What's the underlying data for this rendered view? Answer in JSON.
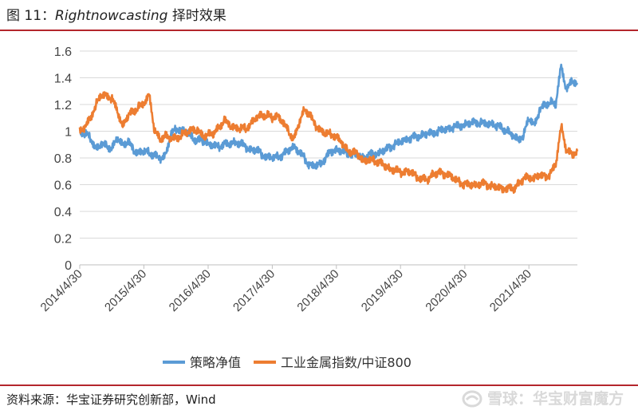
{
  "header": {
    "figure_number": "图 11：",
    "model_name": "Rightnowcasting",
    "suffix": " 择时效果"
  },
  "footer": {
    "source": "资料来源：华宝证券研究创新部，Wind",
    "watermark": "雪球：华宝财富魔方",
    "watermark_icon": "snowball-logo-icon"
  },
  "chart_data": {
    "type": "line",
    "title": "",
    "xlabel": "",
    "ylabel": "",
    "ylim": [
      0,
      1.6
    ],
    "y_ticks": [
      0,
      0.2,
      0.4,
      0.6,
      0.8,
      1,
      1.2,
      1.4,
      1.6
    ],
    "y_tick_labels": [
      "0",
      "0.2",
      "0.4",
      "0.6",
      "0.8",
      "1",
      "1.2",
      "1.4",
      "1.6"
    ],
    "x_tick_labels": [
      "2014/4/30",
      "2015/4/30",
      "2016/4/30",
      "2017/4/30",
      "2018/4/30",
      "2019/4/30",
      "2020/4/30",
      "2021/4/30"
    ],
    "x_range": [
      "2014/4/30",
      "2022/1/31"
    ],
    "grid": true,
    "legend_position": "bottom",
    "series": [
      {
        "name": "策略净值",
        "color": "#5b9bd5",
        "x": [
          "2014/4/30",
          "2014/5/31",
          "2014/6/30",
          "2014/7/31",
          "2014/8/31",
          "2014/9/30",
          "2014/10/31",
          "2014/11/30",
          "2014/12/31",
          "2015/1/31",
          "2015/2/28",
          "2015/3/31",
          "2015/4/30",
          "2015/5/31",
          "2015/6/30",
          "2015/7/31",
          "2015/8/31",
          "2015/9/30",
          "2015/10/31",
          "2015/11/30",
          "2015/12/31",
          "2016/1/31",
          "2016/2/29",
          "2016/3/31",
          "2016/4/30",
          "2016/5/31",
          "2016/6/30",
          "2016/7/31",
          "2016/8/31",
          "2016/9/30",
          "2016/10/31",
          "2016/11/30",
          "2016/12/31",
          "2017/1/31",
          "2017/2/28",
          "2017/3/31",
          "2017/4/30",
          "2017/5/31",
          "2017/6/30",
          "2017/7/31",
          "2017/8/31",
          "2017/9/30",
          "2017/10/31",
          "2017/11/30",
          "2017/12/31",
          "2018/1/31",
          "2018/2/28",
          "2018/3/31",
          "2018/4/30",
          "2018/5/31",
          "2018/6/30",
          "2018/7/31",
          "2018/8/31",
          "2018/9/30",
          "2018/10/31",
          "2018/11/30",
          "2018/12/31",
          "2019/1/31",
          "2019/2/28",
          "2019/3/31",
          "2019/4/30",
          "2019/5/31",
          "2019/6/30",
          "2019/7/31",
          "2019/8/31",
          "2019/9/30",
          "2019/10/31",
          "2019/11/30",
          "2019/12/31",
          "2020/1/31",
          "2020/2/29",
          "2020/3/31",
          "2020/4/30",
          "2020/5/31",
          "2020/6/30",
          "2020/7/31",
          "2020/8/31",
          "2020/9/30",
          "2020/10/31",
          "2020/11/30",
          "2020/12/31",
          "2021/1/31",
          "2021/2/28",
          "2021/3/31",
          "2021/4/30",
          "2021/5/31",
          "2021/6/30",
          "2021/7/31",
          "2021/8/31",
          "2021/9/30",
          "2021/10/31",
          "2021/11/30",
          "2021/12/31",
          "2022/1/31"
        ],
        "y": [
          1.0,
          0.98,
          0.95,
          0.87,
          0.9,
          0.89,
          0.87,
          0.95,
          0.9,
          0.92,
          0.86,
          0.84,
          0.85,
          0.84,
          0.82,
          0.79,
          0.82,
          0.97,
          1.02,
          1.01,
          0.99,
          0.95,
          0.93,
          0.93,
          0.91,
          0.89,
          0.88,
          0.91,
          0.9,
          0.92,
          0.91,
          0.88,
          0.86,
          0.86,
          0.83,
          0.81,
          0.8,
          0.81,
          0.82,
          0.86,
          0.89,
          0.84,
          0.8,
          0.74,
          0.74,
          0.76,
          0.8,
          0.85,
          0.86,
          0.85,
          0.84,
          0.83,
          0.82,
          0.8,
          0.82,
          0.83,
          0.84,
          0.86,
          0.88,
          0.9,
          0.92,
          0.94,
          0.95,
          0.96,
          0.97,
          0.98,
          0.99,
          1.0,
          1.01,
          1.02,
          1.03,
          1.04,
          1.05,
          1.06,
          1.07,
          1.06,
          1.05,
          1.06,
          1.04,
          1.02,
          1.0,
          0.96,
          0.94,
          0.97,
          1.1,
          1.05,
          1.15,
          1.2,
          1.22,
          1.2,
          1.5,
          1.3,
          1.38,
          1.35
        ]
      },
      {
        "name": "工业金属指数/中证800",
        "color": "#ed7d31",
        "x": [
          "2014/4/30",
          "2014/5/31",
          "2014/6/30",
          "2014/7/31",
          "2014/8/31",
          "2014/9/30",
          "2014/10/31",
          "2014/11/30",
          "2014/12/31",
          "2015/1/31",
          "2015/2/28",
          "2015/3/31",
          "2015/4/30",
          "2015/5/31",
          "2015/6/30",
          "2015/7/31",
          "2015/8/31",
          "2015/9/30",
          "2015/10/31",
          "2015/11/30",
          "2015/12/31",
          "2016/1/31",
          "2016/2/29",
          "2016/3/31",
          "2016/4/30",
          "2016/5/31",
          "2016/6/30",
          "2016/7/31",
          "2016/8/31",
          "2016/9/30",
          "2016/10/31",
          "2016/11/30",
          "2016/12/31",
          "2017/1/31",
          "2017/2/28",
          "2017/3/31",
          "2017/4/30",
          "2017/5/31",
          "2017/6/30",
          "2017/7/31",
          "2017/8/31",
          "2017/9/30",
          "2017/10/31",
          "2017/11/30",
          "2017/12/31",
          "2018/1/31",
          "2018/2/28",
          "2018/3/31",
          "2018/4/30",
          "2018/5/31",
          "2018/6/30",
          "2018/7/31",
          "2018/8/31",
          "2018/9/30",
          "2018/10/31",
          "2018/11/30",
          "2018/12/31",
          "2019/1/31",
          "2019/2/28",
          "2019/3/31",
          "2019/4/30",
          "2019/5/31",
          "2019/6/30",
          "2019/7/31",
          "2019/8/31",
          "2019/9/30",
          "2019/10/31",
          "2019/11/30",
          "2019/12/31",
          "2020/1/31",
          "2020/2/29",
          "2020/3/31",
          "2020/4/30",
          "2020/5/31",
          "2020/6/30",
          "2020/7/31",
          "2020/8/31",
          "2020/9/30",
          "2020/10/31",
          "2020/11/30",
          "2020/12/31",
          "2021/1/31",
          "2021/2/28",
          "2021/3/31",
          "2021/4/30",
          "2021/5/31",
          "2021/6/30",
          "2021/7/31",
          "2021/8/31",
          "2021/9/30",
          "2021/10/31",
          "2021/11/30",
          "2021/12/31",
          "2022/1/31"
        ],
        "y": [
          1.0,
          1.03,
          1.1,
          1.2,
          1.27,
          1.27,
          1.24,
          1.15,
          1.04,
          1.12,
          1.15,
          1.18,
          1.2,
          1.28,
          1.0,
          0.94,
          0.97,
          0.94,
          0.95,
          0.97,
          0.99,
          1.02,
          1.0,
          0.96,
          0.98,
          0.98,
          1.03,
          1.08,
          1.04,
          1.03,
          1.02,
          1.02,
          1.06,
          1.1,
          1.12,
          1.12,
          1.1,
          1.12,
          1.06,
          1.0,
          0.94,
          1.06,
          1.17,
          1.12,
          1.04,
          1.01,
          0.98,
          0.98,
          0.96,
          0.91,
          0.86,
          0.84,
          0.83,
          0.78,
          0.78,
          0.78,
          0.77,
          0.74,
          0.72,
          0.71,
          0.69,
          0.7,
          0.69,
          0.66,
          0.65,
          0.63,
          0.68,
          0.69,
          0.68,
          0.68,
          0.64,
          0.62,
          0.6,
          0.6,
          0.6,
          0.61,
          0.6,
          0.59,
          0.58,
          0.57,
          0.58,
          0.56,
          0.61,
          0.64,
          0.66,
          0.65,
          0.67,
          0.66,
          0.68,
          0.75,
          1.05,
          0.85,
          0.83,
          0.85
        ]
      }
    ]
  }
}
